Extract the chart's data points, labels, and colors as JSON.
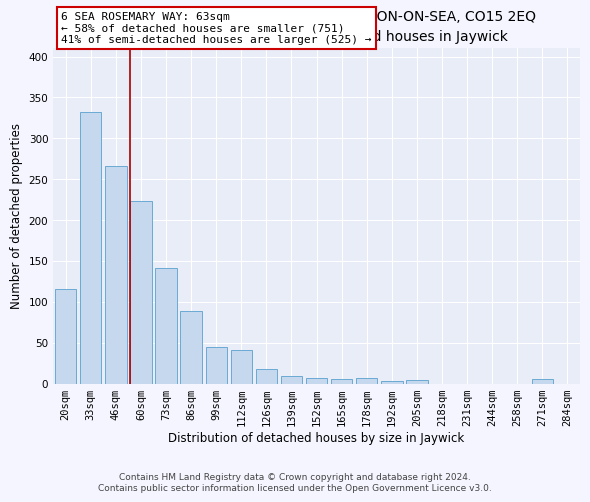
{
  "title": "6, SEA ROSEMARY WAY, JAYWICK, CLACTON-ON-SEA, CO15 2EQ",
  "subtitle": "Size of property relative to detached houses in Jaywick",
  "xlabel": "Distribution of detached houses by size in Jaywick",
  "ylabel": "Number of detached properties",
  "categories": [
    "20sqm",
    "33sqm",
    "46sqm",
    "60sqm",
    "73sqm",
    "86sqm",
    "99sqm",
    "112sqm",
    "126sqm",
    "139sqm",
    "152sqm",
    "165sqm",
    "178sqm",
    "192sqm",
    "205sqm",
    "218sqm",
    "231sqm",
    "244sqm",
    "258sqm",
    "271sqm",
    "284sqm"
  ],
  "values": [
    116,
    332,
    266,
    223,
    141,
    89,
    45,
    41,
    18,
    9,
    7,
    5,
    7,
    3,
    4,
    0,
    0,
    0,
    0,
    5,
    0
  ],
  "bar_color": "#c5d8ee",
  "bar_edge_color": "#6aaad4",
  "vline_x": 2.57,
  "vline_color": "#aa0000",
  "annotation_line1": "6 SEA ROSEMARY WAY: 63sqm",
  "annotation_line2": "← 58% of detached houses are smaller (751)",
  "annotation_line3": "41% of semi-detached houses are larger (525) →",
  "annotation_box_facecolor": "#ffffff",
  "annotation_box_edgecolor": "#cc0000",
  "ylim": [
    0,
    410
  ],
  "yticks": [
    0,
    50,
    100,
    150,
    200,
    250,
    300,
    350,
    400
  ],
  "footer": "Contains HM Land Registry data © Crown copyright and database right 2024.\nContains public sector information licensed under the Open Government Licence v3.0.",
  "fig_facecolor": "#f5f5ff",
  "ax_facecolor": "#e8edf8",
  "grid_color": "#ffffff",
  "title_fontsize": 10,
  "subtitle_fontsize": 9,
  "ylabel_fontsize": 8.5,
  "xlabel_fontsize": 8.5,
  "tick_fontsize": 7.5,
  "annot_fontsize": 8,
  "footer_fontsize": 6.5
}
